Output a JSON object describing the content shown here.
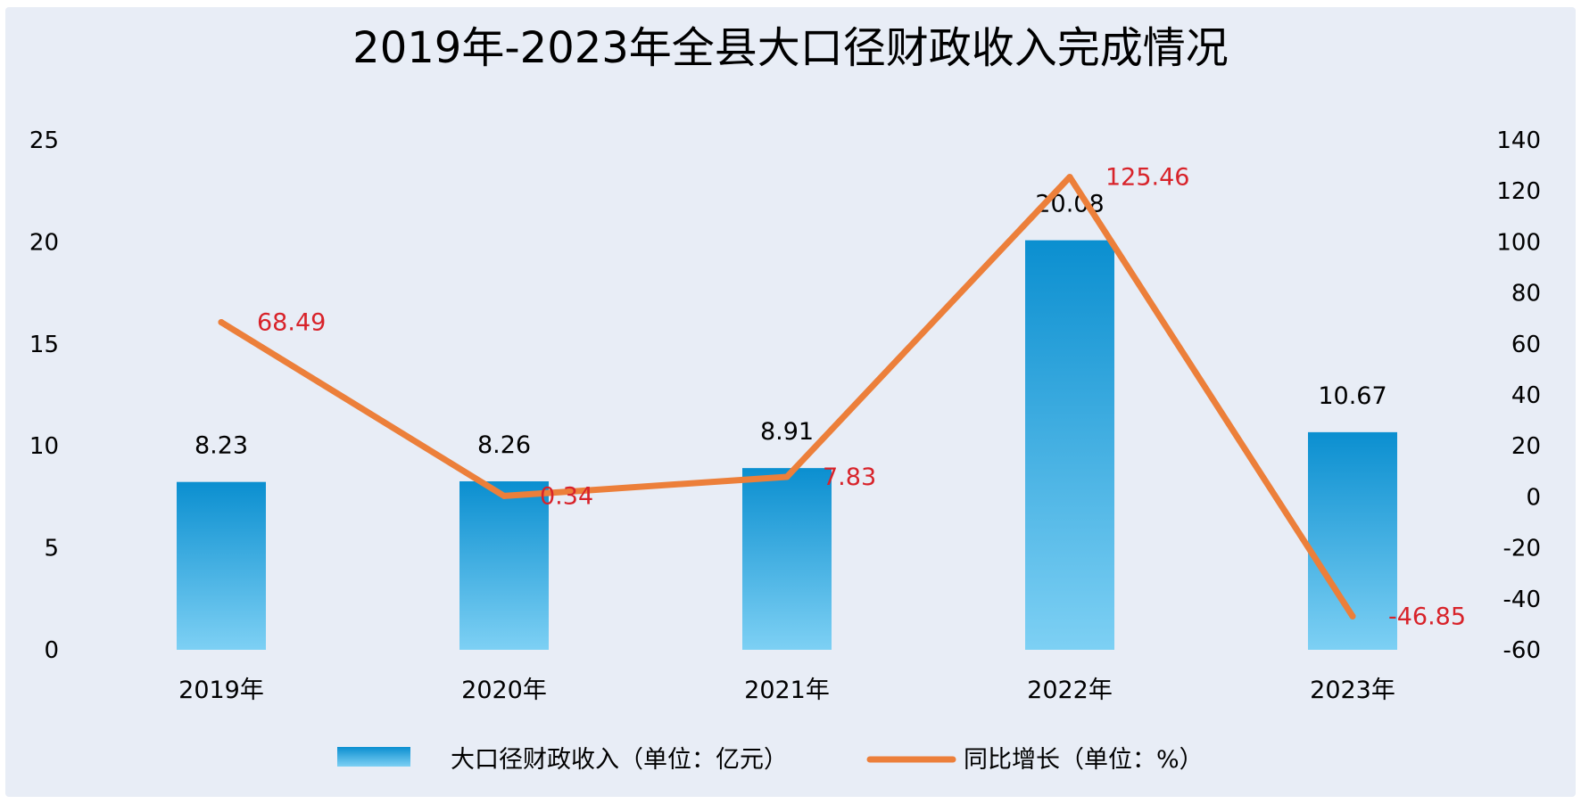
{
  "chart_data": {
    "type": "bar",
    "title": "2019年-2023年全县大口径财政收入完成情况",
    "categories": [
      "2019年",
      "2020年",
      "2021年",
      "2022年",
      "2023年"
    ],
    "series": [
      {
        "name": "大口径财政收入（单位：亿元）",
        "type": "bar",
        "axis": "left",
        "values": [
          8.23,
          8.26,
          8.91,
          20.08,
          10.67
        ],
        "labels": [
          "8.23",
          "8.26",
          "8.91",
          "20.08",
          "10.67"
        ]
      },
      {
        "name": "同比增长（单位：%）",
        "type": "line",
        "axis": "right",
        "values": [
          68.49,
          0.34,
          7.83,
          125.46,
          -46.85
        ],
        "labels": [
          "68.49",
          "0.34",
          "7.83",
          "125.46",
          "-46.85"
        ]
      }
    ],
    "y_left": {
      "ylim": [
        0,
        25
      ],
      "ticks": [
        "0",
        "5",
        "10",
        "15",
        "20",
        "25"
      ]
    },
    "y_right": {
      "ylim": [
        -60,
        140
      ],
      "ticks": [
        "-60",
        "-40",
        "-20",
        "0",
        "20",
        "40",
        "60",
        "80",
        "100",
        "120",
        "140"
      ]
    },
    "grid": false,
    "legend": "bottom",
    "colors": {
      "outer_background": "#ffffff",
      "plot_background": "#e8edf6",
      "bar_top": "#0b8fd0",
      "bar_bottom": "#7dd0f4",
      "line": "#ec7f3a",
      "line_label": "#d8232a",
      "text": "#000000"
    }
  }
}
